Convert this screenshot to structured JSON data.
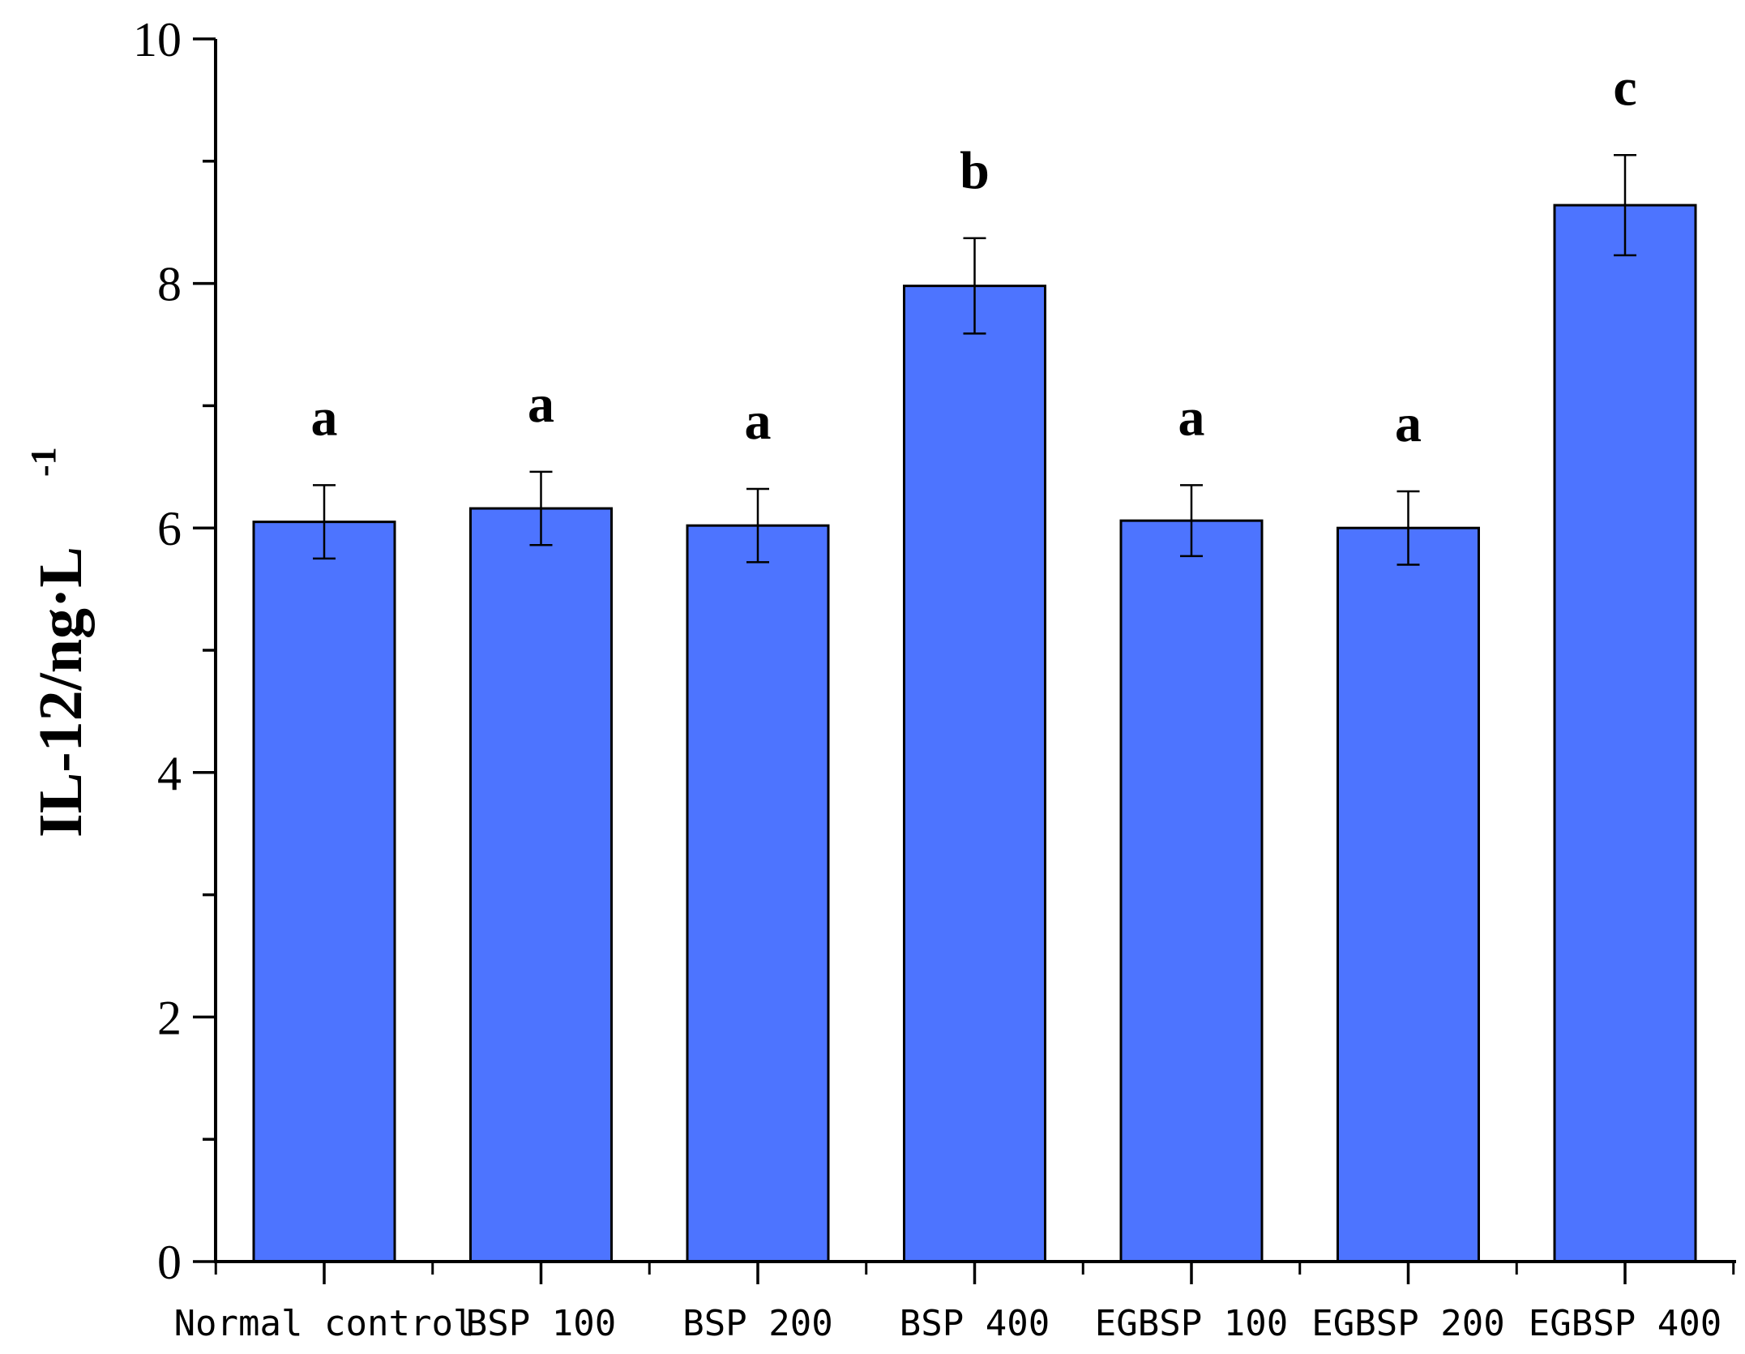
{
  "chart_data": {
    "type": "bar",
    "title": "",
    "xlabel": "",
    "ylabel": "IL-12/ng·L",
    "ylabel_superscript": "-1",
    "ylim": [
      0,
      10
    ],
    "yticks": [
      "0",
      "2",
      "4",
      "6",
      "8",
      "10"
    ],
    "categories": [
      "Normal control",
      "BSP 100",
      "BSP 200",
      "BSP 400",
      "EGBSP 100",
      "EGBSP 200",
      "EGBSP 400"
    ],
    "values": [
      6.05,
      6.16,
      6.02,
      7.98,
      6.06,
      6.0,
      8.64
    ],
    "errors": [
      0.3,
      0.3,
      0.3,
      0.39,
      0.29,
      0.3,
      0.41
    ],
    "significance": [
      "a",
      "a",
      "a",
      "b",
      "a",
      "a",
      "c"
    ],
    "bar_color": "#4d74ff",
    "grid": false
  }
}
